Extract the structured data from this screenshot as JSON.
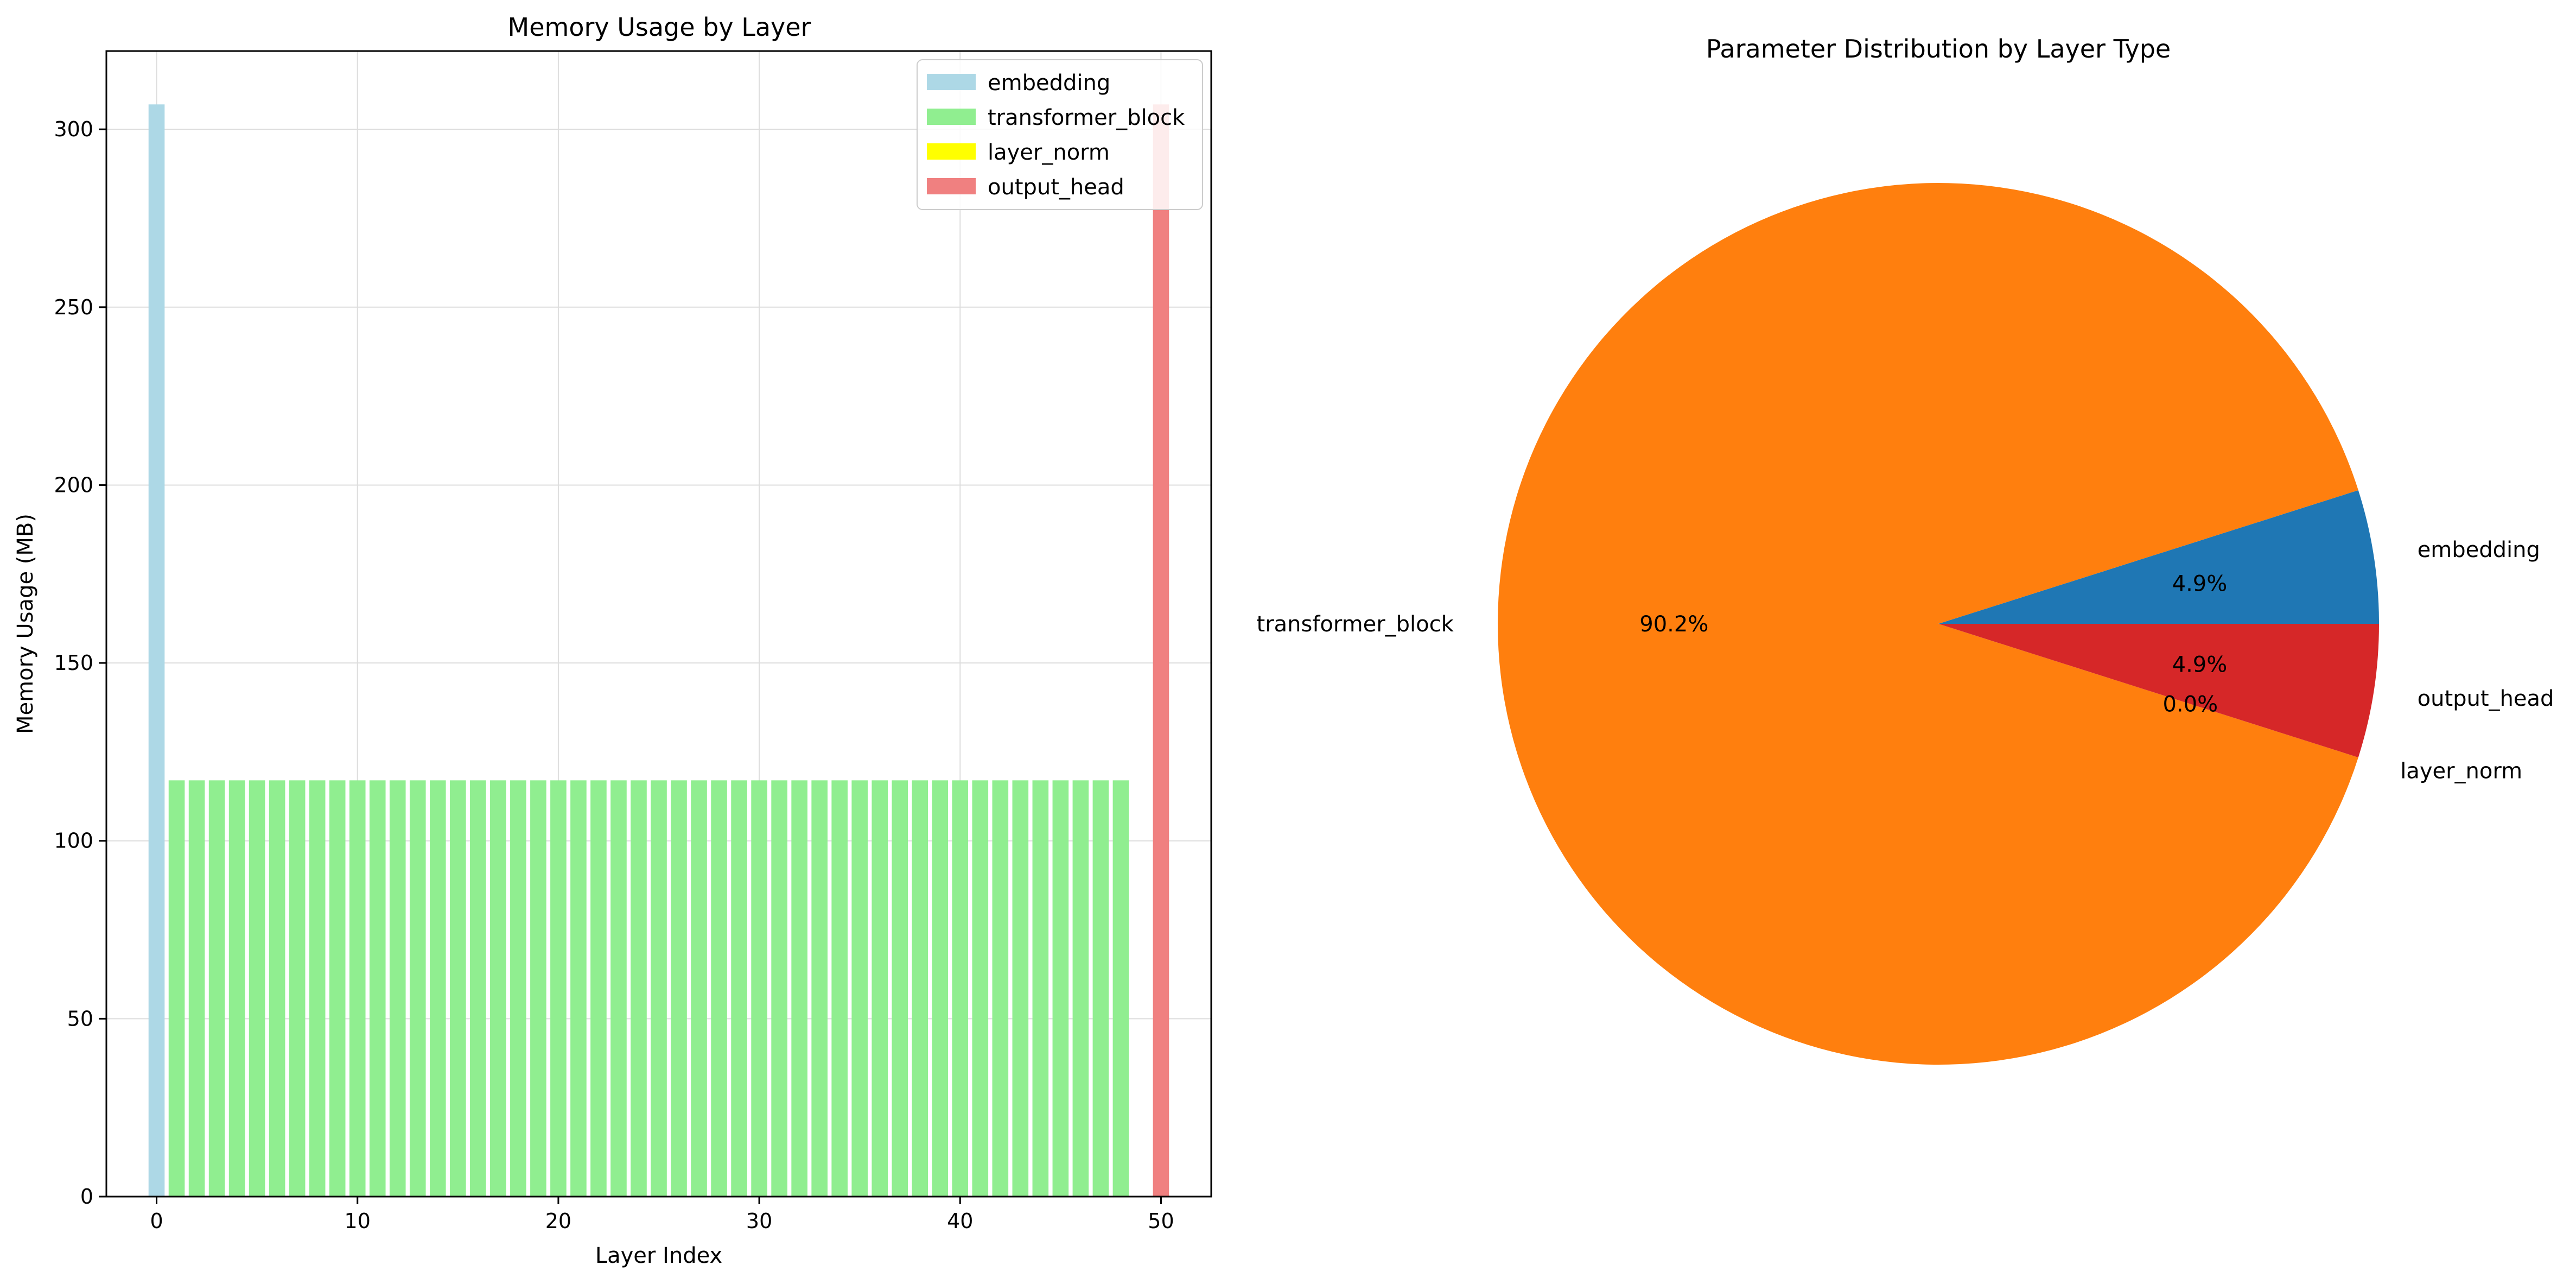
{
  "chart_data": [
    {
      "type": "bar",
      "title": "Memory Usage by Layer",
      "xlabel": "Layer Index",
      "ylabel": "Memory Usage (MB)",
      "xlim": [
        -2.5,
        52.5
      ],
      "ylim": [
        0,
        322
      ],
      "xticks": [
        "0",
        "10",
        "20",
        "30",
        "40",
        "50"
      ],
      "yticks": [
        "0",
        "50",
        "100",
        "150",
        "200",
        "250",
        "300"
      ],
      "grid": true,
      "legend_position": "top-right",
      "series": [
        {
          "name": "embedding",
          "color": "#add8e6",
          "x": [
            0
          ],
          "values": [
            307
          ]
        },
        {
          "name": "transformer_block",
          "color": "#90ee90",
          "x": [
            1,
            2,
            3,
            4,
            5,
            6,
            7,
            8,
            9,
            10,
            11,
            12,
            13,
            14,
            15,
            16,
            17,
            18,
            19,
            20,
            21,
            22,
            23,
            24,
            25,
            26,
            27,
            28,
            29,
            30,
            31,
            32,
            33,
            34,
            35,
            36,
            37,
            38,
            39,
            40,
            41,
            42,
            43,
            44,
            45,
            46,
            47,
            48
          ],
          "values": [
            117,
            117,
            117,
            117,
            117,
            117,
            117,
            117,
            117,
            117,
            117,
            117,
            117,
            117,
            117,
            117,
            117,
            117,
            117,
            117,
            117,
            117,
            117,
            117,
            117,
            117,
            117,
            117,
            117,
            117,
            117,
            117,
            117,
            117,
            117,
            117,
            117,
            117,
            117,
            117,
            117,
            117,
            117,
            117,
            117,
            117,
            117,
            117
          ]
        },
        {
          "name": "layer_norm",
          "color": "#ffff00",
          "x": [
            49
          ],
          "values": [
            0
          ]
        },
        {
          "name": "output_head",
          "color": "#f08080",
          "x": [
            50
          ],
          "values": [
            307
          ]
        }
      ]
    },
    {
      "type": "pie",
      "title": "Parameter Distribution by Layer Type",
      "slices": [
        {
          "label": "embedding",
          "percent": 4.9,
          "pct_label": "4.9%",
          "color": "#1f77b4"
        },
        {
          "label": "transformer_block",
          "percent": 90.2,
          "pct_label": "90.2%",
          "color": "#ff7f0e"
        },
        {
          "label": "layer_norm",
          "percent": 0.0,
          "pct_label": "0.0%",
          "color": "#2ca02c"
        },
        {
          "label": "output_head",
          "percent": 4.9,
          "pct_label": "4.9%",
          "color": "#d62728"
        }
      ]
    }
  ]
}
